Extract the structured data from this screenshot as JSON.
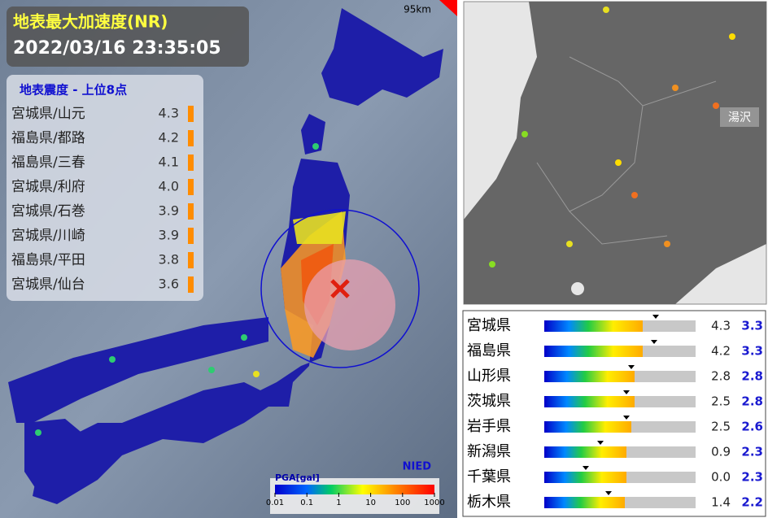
{
  "left_panel": {
    "title": "地表最大加速度(NR)",
    "timestamp": "2022/03/16 23:35:05",
    "scale_label": "95km",
    "ranking": {
      "title": "地表震度 - 上位8点",
      "rows": [
        {
          "location": "宮城県/山元",
          "value": "4.3"
        },
        {
          "location": "福島県/都路",
          "value": "4.2"
        },
        {
          "location": "福島県/三春",
          "value": "4.1"
        },
        {
          "location": "宮城県/利府",
          "value": "4.0"
        },
        {
          "location": "宮城県/石巻",
          "value": "3.9"
        },
        {
          "location": "宮城県/川崎",
          "value": "3.9"
        },
        {
          "location": "福島県/平田",
          "value": "3.8"
        },
        {
          "location": "宮城県/仙台",
          "value": "3.6"
        }
      ]
    },
    "legend": {
      "title": "PGA[gal]",
      "logo": "NIED",
      "ticks": [
        "0.01",
        "0.1",
        "1",
        "10",
        "100",
        "1000"
      ]
    }
  },
  "right_panel": {
    "map_label": "湯沢",
    "prefectures": [
      {
        "name": "宮城県",
        "max": "4.3",
        "intensity": "3.3"
      },
      {
        "name": "福島県",
        "max": "4.2",
        "intensity": "3.3"
      },
      {
        "name": "山形県",
        "max": "2.8",
        "intensity": "2.8"
      },
      {
        "name": "茨城県",
        "max": "2.5",
        "intensity": "2.8"
      },
      {
        "name": "岩手県",
        "max": "2.5",
        "intensity": "2.6"
      },
      {
        "name": "新潟県",
        "max": "0.9",
        "intensity": "2.3"
      },
      {
        "name": "千葉県",
        "max": "0.0",
        "intensity": "2.3"
      },
      {
        "name": "栃木県",
        "max": "1.4",
        "intensity": "2.2"
      }
    ]
  }
}
